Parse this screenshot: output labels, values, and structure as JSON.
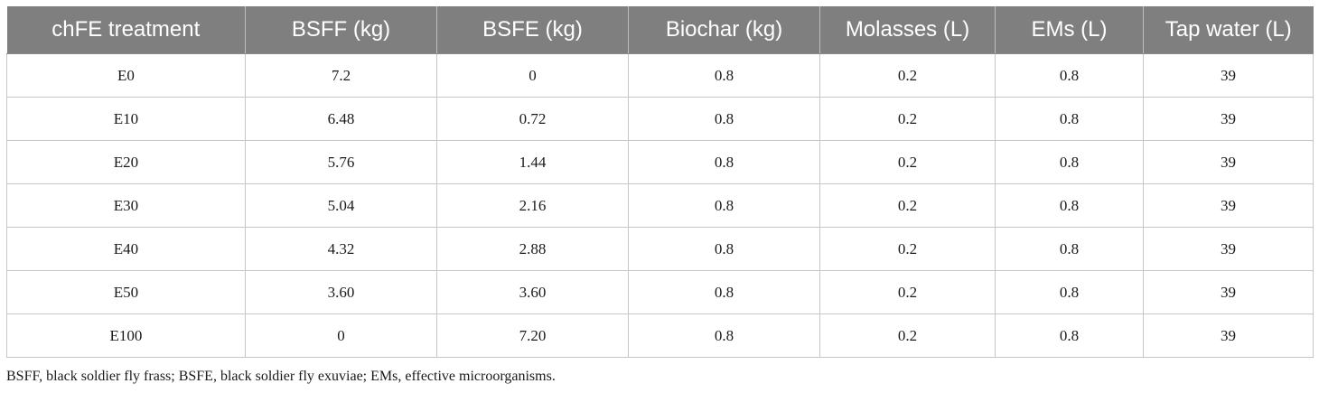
{
  "table": {
    "headers": [
      "chFE treatment",
      "BSFF (kg)",
      "BSFE (kg)",
      "Biochar (kg)",
      "Molasses (L)",
      "EMs (L)",
      "Tap water (L)"
    ],
    "rows": [
      [
        "E0",
        "7.2",
        "0",
        "0.8",
        "0.2",
        "0.8",
        "39"
      ],
      [
        "E10",
        "6.48",
        "0.72",
        "0.8",
        "0.2",
        "0.8",
        "39"
      ],
      [
        "E20",
        "5.76",
        "1.44",
        "0.8",
        "0.2",
        "0.8",
        "39"
      ],
      [
        "E30",
        "5.04",
        "2.16",
        "0.8",
        "0.2",
        "0.8",
        "39"
      ],
      [
        "E40",
        "4.32",
        "2.88",
        "0.8",
        "0.2",
        "0.8",
        "39"
      ],
      [
        "E50",
        "3.60",
        "3.60",
        "0.8",
        "0.2",
        "0.8",
        "39"
      ],
      [
        "E100",
        "0",
        "7.20",
        "0.8",
        "0.2",
        "0.8",
        "39"
      ]
    ]
  },
  "footnote": "BSFF, black soldier fly frass; BSFE, black soldier fly exuviae; EMs, effective microorganisms.",
  "colors": {
    "header_bg": "#7f7f7f",
    "header_text": "#ffffff",
    "border": "#c6c6c6"
  }
}
